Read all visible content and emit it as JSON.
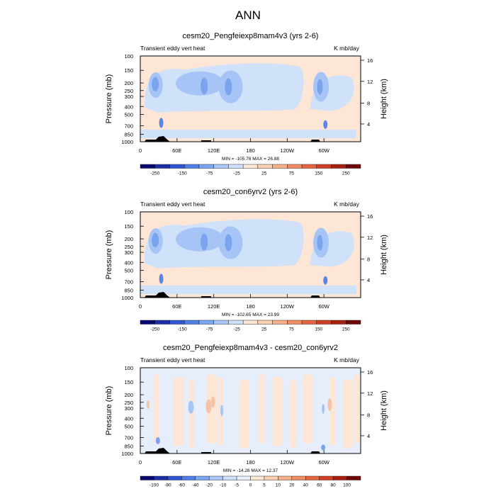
{
  "figure": {
    "title": "ANN"
  },
  "chart_data": [
    {
      "type": "heatmap",
      "title": "cesm20_Pengfeiexp8mam4v3 (yrs 2-6)",
      "left_label": "Transient eddy vert heat",
      "right_label": "K mb/day",
      "ylabel": "Pressure (mb)",
      "ylabel_right": "Height (km)",
      "pressure_ticks": [
        "100",
        "150",
        "200",
        "250",
        "300",
        "400",
        "500",
        "700",
        "850",
        "1000"
      ],
      "height_ticks": [
        "16",
        "12",
        "8",
        "4"
      ],
      "lon_ticks": [
        "0",
        "60E",
        "120E",
        "180",
        "120W",
        "60W"
      ],
      "stats": "MIN = -105.78  MAX =  26.88",
      "colorbar": {
        "labels": [
          "-250",
          "-150",
          "-75",
          "-25",
          "25",
          "75",
          "150",
          "250"
        ],
        "colors": [
          "#08086e",
          "#1d2fa8",
          "#2f55d4",
          "#4d7fe8",
          "#7aa5f2",
          "#a8c6f8",
          "#cfe0fb",
          "#fde8d6",
          "#fbd0b0",
          "#f8b08b",
          "#f28c62",
          "#e86440",
          "#d13e23",
          "#a8200f",
          "#6e0808"
        ]
      }
    },
    {
      "type": "heatmap",
      "title": "cesm20_con6yrv2 (yrs 2-6)",
      "left_label": "Transient eddy vert heat",
      "right_label": "K mb/day",
      "ylabel": "Pressure (mb)",
      "ylabel_right": "Height (km)",
      "pressure_ticks": [
        "100",
        "150",
        "200",
        "250",
        "300",
        "400",
        "500",
        "700",
        "850",
        "1000"
      ],
      "height_ticks": [
        "16",
        "12",
        "8",
        "4"
      ],
      "lon_ticks": [
        "0",
        "60E",
        "120E",
        "180",
        "120W",
        "60W"
      ],
      "stats": "MIN = -102.65  MAX =  23.99",
      "colorbar": {
        "labels": [
          "-250",
          "-150",
          "-75",
          "-25",
          "25",
          "75",
          "150",
          "250"
        ],
        "colors": [
          "#08086e",
          "#1d2fa8",
          "#2f55d4",
          "#4d7fe8",
          "#7aa5f2",
          "#a8c6f8",
          "#cfe0fb",
          "#fde8d6",
          "#fbd0b0",
          "#f8b08b",
          "#f28c62",
          "#e86440",
          "#d13e23",
          "#a8200f",
          "#6e0808"
        ]
      }
    },
    {
      "type": "heatmap",
      "title": "cesm20_Pengfeiexp8mam4v3 - cesm20_con6yrv2",
      "left_label": "Transient eddy vert heat",
      "right_label": "K mb/day",
      "ylabel": "Pressure (mb)",
      "ylabel_right": "Height (km)",
      "pressure_ticks": [
        "100",
        "150",
        "200",
        "250",
        "300",
        "400",
        "500",
        "700",
        "850",
        "1000"
      ],
      "height_ticks": [
        "16",
        "12",
        "8",
        "4"
      ],
      "lon_ticks": [
        "0",
        "60E",
        "120E",
        "180",
        "120W",
        "60W"
      ],
      "stats": "MIN = -14.26  MAX =  12.37",
      "colorbar": {
        "labels": [
          "-100",
          "-80",
          "-60",
          "-40",
          "-20",
          "-10",
          "-5",
          "0",
          "5",
          "10",
          "20",
          "40",
          "60",
          "80",
          "100"
        ],
        "colors": [
          "#08086e",
          "#1d2fa8",
          "#2f55d4",
          "#4d7fe8",
          "#7aa5f2",
          "#a8c6f8",
          "#cfe0fb",
          "#e7f0fd",
          "#fde8d6",
          "#fbd0b0",
          "#f8b08b",
          "#f28c62",
          "#e86440",
          "#d13e23",
          "#a8200f",
          "#6e0808"
        ]
      }
    }
  ]
}
